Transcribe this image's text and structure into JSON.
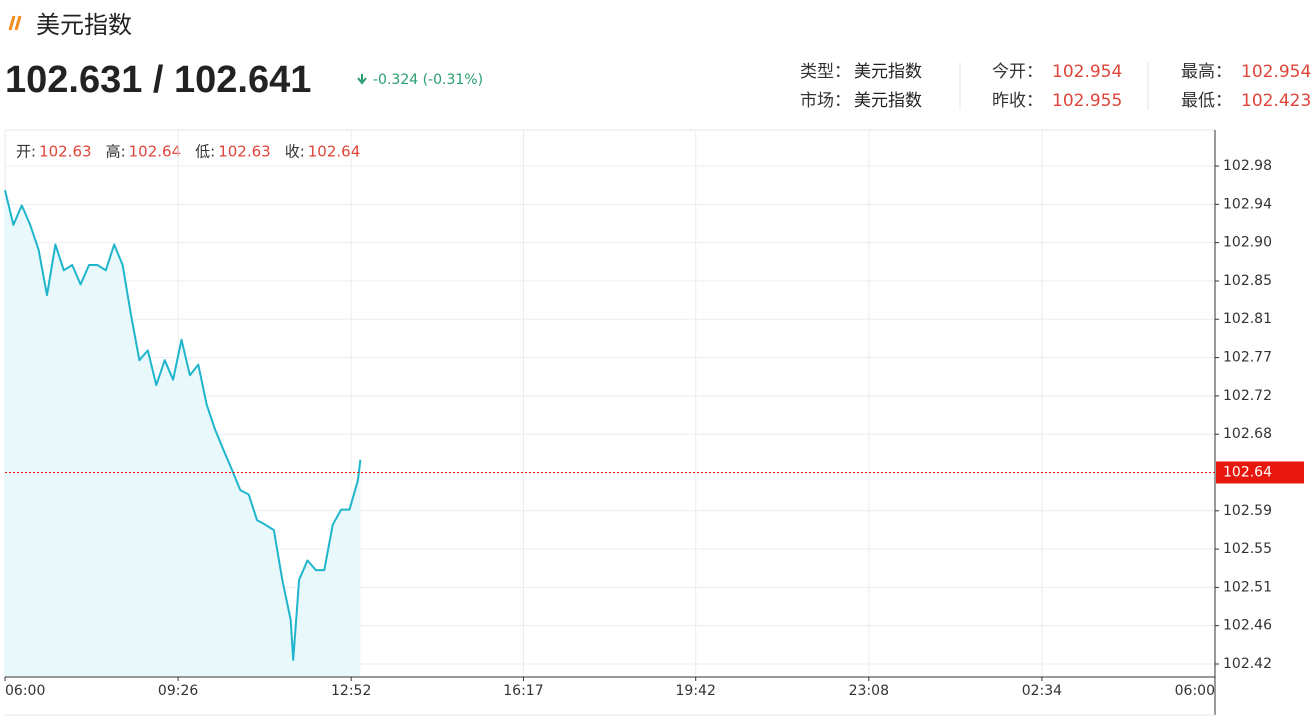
{
  "header": {
    "title": "美元指数",
    "price": "102.631 / 102.641",
    "change": "-0.324 (-0.31%)",
    "info": [
      [
        {
          "label": "类型：",
          "value": "美元指数"
        },
        {
          "label": "今开：",
          "value": "102.954"
        },
        {
          "label": "最高：",
          "value": "102.954"
        }
      ],
      [
        {
          "label": "市场：",
          "value": "美元指数"
        },
        {
          "label": "昨收：",
          "value": "102.955"
        },
        {
          "label": "最低：",
          "value": "102.423"
        }
      ]
    ]
  },
  "quote": [
    {
      "label": "开:",
      "value": "102.63"
    },
    {
      "label": "高:",
      "value": "102.64"
    },
    {
      "label": "低:",
      "value": "102.63"
    },
    {
      "label": "收:",
      "value": "102.64"
    }
  ],
  "chart_data": {
    "type": "line",
    "x": [
      "06:00",
      "06:10",
      "06:20",
      "06:30",
      "06:40",
      "06:50",
      "07:00",
      "07:10",
      "07:20",
      "07:30",
      "07:40",
      "07:50",
      "08:00",
      "08:10",
      "08:20",
      "08:30",
      "08:40",
      "08:50",
      "09:00",
      "09:10",
      "09:20",
      "09:30",
      "09:40",
      "09:50",
      "10:00",
      "10:10",
      "10:20",
      "10:30",
      "10:40",
      "10:50",
      "11:00",
      "11:10",
      "11:20",
      "11:30",
      "11:40",
      "11:43",
      "11:50",
      "12:00",
      "12:10",
      "12:20",
      "12:30",
      "12:40",
      "12:50",
      "13:00",
      "13:03"
    ],
    "series": [
      {
        "color": "#1fb5cc",
        "fill": "#e8f8fb",
        "values": [
          102.954,
          102.915,
          102.937,
          102.915,
          102.887,
          102.836,
          102.893,
          102.864,
          102.87,
          102.848,
          102.87,
          102.87,
          102.864,
          102.893,
          102.87,
          102.814,
          102.763,
          102.774,
          102.735,
          102.763,
          102.741,
          102.786,
          102.746,
          102.758,
          102.713,
          102.685,
          102.662,
          102.64,
          102.617,
          102.612,
          102.583,
          102.578,
          102.572,
          102.516,
          102.471,
          102.426,
          102.516,
          102.538,
          102.527,
          102.527,
          102.578,
          102.595,
          102.595,
          102.628,
          102.651
        ]
      }
    ],
    "xticks": [
      "06:00",
      "09:26",
      "12:52",
      "16:17",
      "19:42",
      "23:08",
      "02:34",
      "06:00"
    ],
    "ylim": [
      102.4069,
      103.0217
    ],
    "yticks": [
      {
        "value": 102.4215,
        "label": "102.42"
      },
      {
        "value": 102.4646,
        "label": "102.46"
      },
      {
        "value": 102.5076,
        "label": "102.51"
      },
      {
        "value": 102.5507,
        "label": "102.55"
      },
      {
        "value": 102.5937,
        "label": "102.59"
      },
      {
        "value": 102.6798,
        "label": "102.68"
      },
      {
        "value": 102.7229,
        "label": "102.72"
      },
      {
        "value": 102.7659,
        "label": "102.77"
      },
      {
        "value": 102.809,
        "label": "102.81"
      },
      {
        "value": 102.852,
        "label": "102.85"
      },
      {
        "value": 102.8951,
        "label": "102.90"
      },
      {
        "value": 102.9381,
        "label": "102.94"
      },
      {
        "value": 102.9812,
        "label": "102.98"
      }
    ],
    "last_price": {
      "value": 102.6368,
      "label": "102.64",
      "color": "#e8170e"
    },
    "grid": true
  }
}
